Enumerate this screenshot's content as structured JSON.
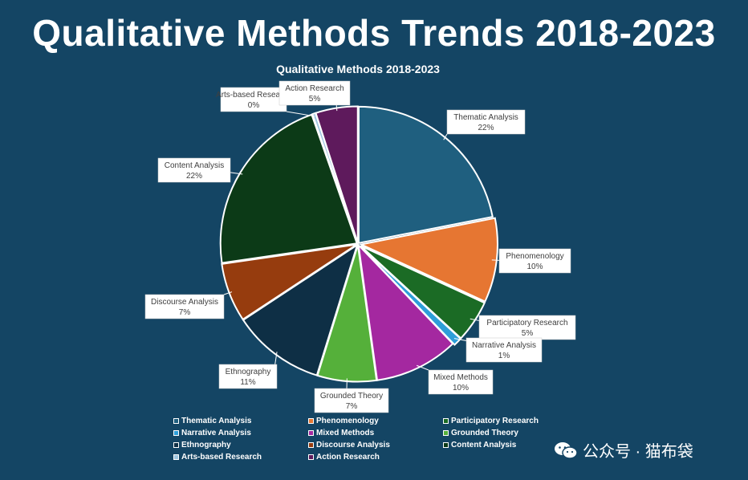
{
  "page": {
    "title": "Qualitative Methods Trends 2018-2023"
  },
  "watermark": {
    "text": "公众号 · 猫布袋"
  },
  "chart_data": {
    "type": "pie",
    "title": "Qualitative Methods 2018-2023",
    "slices": [
      {
        "key": "thematic",
        "name": "Thematic Analysis",
        "value": 22,
        "label": "22%",
        "color": "#1f5f7f"
      },
      {
        "key": "phenomenology",
        "name": "Phenomenology",
        "value": 10,
        "label": "10%",
        "color": "#e67632"
      },
      {
        "key": "participatory",
        "name": "Participatory Research",
        "value": 5,
        "label": "5%",
        "color": "#1b6b25"
      },
      {
        "key": "narrative",
        "name": "Narrative Analysis",
        "value": 1,
        "label": "1%",
        "color": "#2d9ed9"
      },
      {
        "key": "mixed",
        "name": "Mixed Methods",
        "value": 10,
        "label": "10%",
        "color": "#a428a0"
      },
      {
        "key": "grounded",
        "name": "Grounded Theory",
        "value": 7,
        "label": "7%",
        "color": "#55b03a"
      },
      {
        "key": "ethnography",
        "name": "Ethnography",
        "value": 11,
        "label": "11%",
        "color": "#0e2f45"
      },
      {
        "key": "discourse",
        "name": "Discourse Analysis",
        "value": 7,
        "label": "7%",
        "color": "#963c0e"
      },
      {
        "key": "content",
        "name": "Content Analysis",
        "value": 22,
        "label": "22%",
        "color": "#0c3a17"
      },
      {
        "key": "arts",
        "name": "Arts-based Research",
        "value": 0.4,
        "label": "0%",
        "color": "#9ec6e0"
      },
      {
        "key": "action",
        "name": "Action Research",
        "value": 5,
        "label": "5%",
        "color": "#5e1a5c"
      }
    ],
    "legend": [
      "Thematic Analysis",
      "Phenomenology",
      "Participatory Research",
      "Narrative Analysis",
      "Mixed Methods",
      "Grounded Theory",
      "Ethnography",
      "Discourse Analysis",
      "Content Analysis",
      "Arts-based Research",
      "Action Research"
    ],
    "legend_position": "bottom"
  }
}
